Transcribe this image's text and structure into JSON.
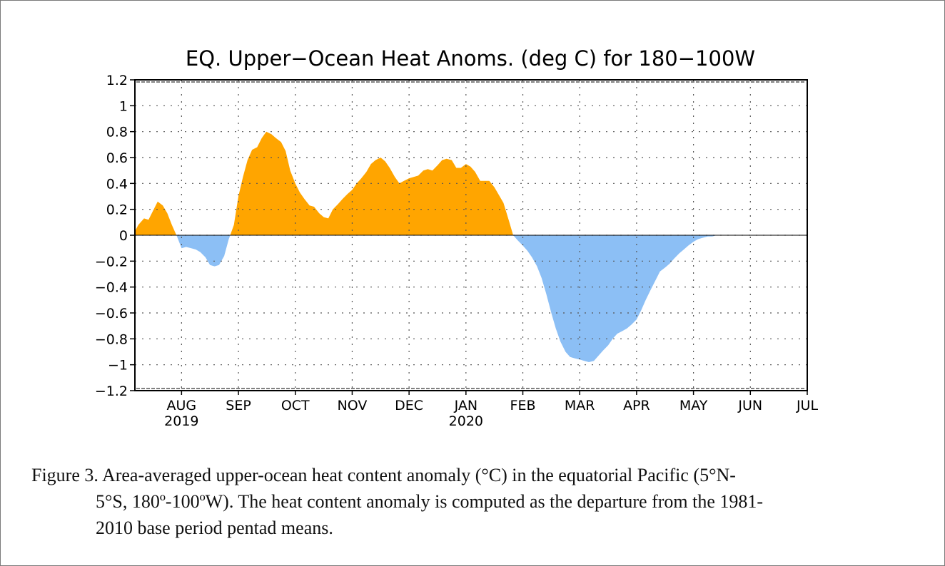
{
  "chart_data": {
    "type": "area",
    "title": "EQ. Upper−Ocean Heat Anoms. (deg C) for 180−100W",
    "xlabel": "",
    "ylabel": "",
    "ylim": [
      -1.2,
      1.2
    ],
    "yticks": [
      "1.2",
      "1",
      "0.8",
      "0.6",
      "0.4",
      "0.2",
      "0",
      "−0.2",
      "−0.4",
      "−0.6",
      "−0.8",
      "−1",
      "−1.2"
    ],
    "xticks": [
      {
        "label": "AUG",
        "year": "2019",
        "t": 0.0
      },
      {
        "label": "SEP",
        "t": 1.0
      },
      {
        "label": "OCT",
        "t": 2.0
      },
      {
        "label": "NOV",
        "t": 3.0
      },
      {
        "label": "DEC",
        "t": 4.0
      },
      {
        "label": "JAN",
        "year": "2020",
        "t": 5.0
      },
      {
        "label": "FEB",
        "t": 6.0
      },
      {
        "label": "MAR",
        "t": 7.0
      },
      {
        "label": "APR",
        "t": 8.0
      },
      {
        "label": "MAY",
        "t": 9.0
      },
      {
        "label": "JUN",
        "t": 10.0
      },
      {
        "label": "JUL",
        "t": 11.0
      }
    ],
    "xlim": [
      -0.82,
      11.0
    ],
    "grid": true,
    "positive_color": "#FFA500",
    "negative_color": "#8CBFF5",
    "t": [
      -0.82,
      -0.76,
      -0.66,
      -0.58,
      -0.5,
      -0.42,
      -0.33,
      -0.25,
      -0.17,
      -0.08,
      0.0,
      0.08,
      0.17,
      0.25,
      0.33,
      0.42,
      0.5,
      0.58,
      0.66,
      0.75,
      0.83,
      0.92,
      1.0,
      1.08,
      1.16,
      1.24,
      1.33,
      1.41,
      1.49,
      1.58,
      1.66,
      1.75,
      1.83,
      1.91,
      2.0,
      2.08,
      2.16,
      2.25,
      2.33,
      2.42,
      2.5,
      2.58,
      2.66,
      2.75,
      2.83,
      2.92,
      3.0,
      3.08,
      3.16,
      3.25,
      3.33,
      3.41,
      3.5,
      3.58,
      3.66,
      3.75,
      3.83,
      3.91,
      4.0,
      4.08,
      4.16,
      4.25,
      4.33,
      4.41,
      4.5,
      4.58,
      4.66,
      4.75,
      4.83,
      4.91,
      5.0,
      5.08,
      5.16,
      5.25,
      5.33,
      5.41,
      5.5,
      5.58,
      5.66,
      5.75,
      5.83,
      5.91,
      6.0,
      6.08,
      6.16,
      6.25,
      6.33,
      6.41,
      6.5,
      6.58,
      6.66,
      6.75,
      6.83,
      6.91,
      7.0,
      7.08,
      7.16,
      7.25,
      7.33,
      7.41,
      7.5,
      7.58,
      7.66,
      7.75,
      7.83,
      7.91,
      8.0,
      8.08,
      8.16,
      8.25,
      8.33,
      8.41,
      8.5,
      8.58,
      8.66,
      8.75,
      8.83,
      8.91,
      9.0,
      9.08,
      9.16,
      9.25,
      9.33,
      9.41,
      9.5,
      9.58,
      9.66,
      9.75,
      9.83,
      9.91,
      10.0,
      10.08,
      10.16,
      10.25,
      10.33,
      10.41,
      10.5,
      10.58,
      10.66,
      10.75,
      10.83,
      10.91,
      11.0
    ],
    "series": [
      {
        "values": [
          0.03,
          0.08,
          0.13,
          0.12,
          0.19,
          0.26,
          0.23,
          0.17,
          0.08,
          -0.01,
          -0.1,
          -0.09,
          -0.1,
          -0.11,
          -0.13,
          -0.17,
          -0.23,
          -0.24,
          -0.23,
          -0.16,
          -0.03,
          0.08,
          0.3,
          0.45,
          0.58,
          0.66,
          0.68,
          0.75,
          0.8,
          0.78,
          0.75,
          0.72,
          0.65,
          0.5,
          0.4,
          0.33,
          0.28,
          0.23,
          0.22,
          0.17,
          0.14,
          0.13,
          0.2,
          0.24,
          0.28,
          0.32,
          0.35,
          0.4,
          0.44,
          0.49,
          0.55,
          0.58,
          0.6,
          0.57,
          0.52,
          0.45,
          0.4,
          0.42,
          0.44,
          0.45,
          0.46,
          0.5,
          0.51,
          0.5,
          0.54,
          0.58,
          0.59,
          0.58,
          0.52,
          0.52,
          0.55,
          0.53,
          0.49,
          0.42,
          0.42,
          0.42,
          0.37,
          0.31,
          0.25,
          0.12,
          0.0,
          -0.04,
          -0.08,
          -0.12,
          -0.17,
          -0.24,
          -0.33,
          -0.45,
          -0.6,
          -0.72,
          -0.82,
          -0.9,
          -0.94,
          -0.95,
          -0.96,
          -0.97,
          -0.98,
          -0.97,
          -0.93,
          -0.89,
          -0.85,
          -0.8,
          -0.76,
          -0.74,
          -0.72,
          -0.69,
          -0.65,
          -0.58,
          -0.5,
          -0.42,
          -0.35,
          -0.28,
          -0.25,
          -0.22,
          -0.18,
          -0.14,
          -0.11,
          -0.08,
          -0.05,
          -0.03,
          -0.02,
          -0.01,
          -0.01,
          0.0,
          0.0,
          0.0,
          0.0,
          0.0,
          0.0,
          0.0,
          0.0,
          0.0,
          0.0,
          0.0,
          0.0,
          0.0,
          0.0,
          0.0,
          0.0,
          0.0,
          0.0,
          0.0,
          0.0
        ]
      }
    ]
  },
  "caption": {
    "line1": "Figure 3. Area-averaged upper-ocean heat content anomaly (°C) in the equatorial Pacific (5°N-",
    "line2": "5°S, 180º-100ºW). The heat content anomaly is computed as the departure from the 1981-",
    "line3": "2010 base period pentad means."
  }
}
